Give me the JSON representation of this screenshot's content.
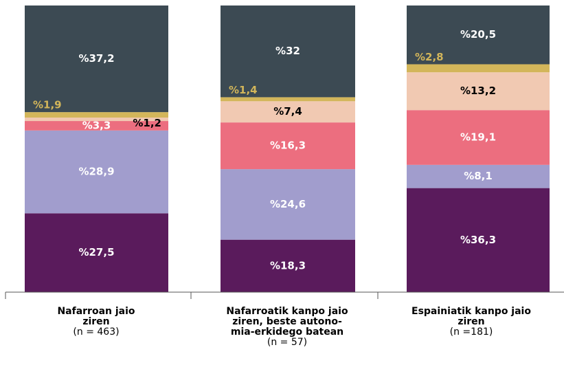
{
  "chart_data": {
    "type": "stacked_bar",
    "categories": [
      "Nafarroan jaio\nziren",
      "Nafarroatik kanpo jaio\nziren, beste autono-\nmia-erkidego batean",
      "Espainiatik kanpo jaio\nziren"
    ],
    "category_notes": [
      "(n = 463)",
      "(n = 57)",
      "(n =181)"
    ],
    "ylim": [
      0,
      100
    ],
    "series": [
      {
        "color": "#5a1b5c",
        "label_color": "#ffffff",
        "values": [
          27.5,
          18.3,
          36.3
        ],
        "value_labels": [
          "%27,5",
          "%18,3",
          "%36,3"
        ]
      },
      {
        "color": "#a19dcd",
        "label_color": "#ffffff",
        "values": [
          28.9,
          24.6,
          8.1
        ],
        "value_labels": [
          "%28,9",
          "%24,6",
          "%8,1"
        ]
      },
      {
        "color": "#ec6e7f",
        "label_color": "#ffffff",
        "values": [
          3.3,
          16.3,
          19.1
        ],
        "value_labels": [
          "%3,3",
          "%16,3",
          "%19,1"
        ]
      },
      {
        "color": "#f1c9b2",
        "label_color": "#000000",
        "values": [
          1.2,
          7.4,
          13.2
        ],
        "value_labels": [
          "%1,2",
          "%7,4",
          "%13,2"
        ]
      },
      {
        "color": "#d3b65a",
        "label_color": "#d3b65a",
        "values": [
          1.9,
          1.4,
          2.8
        ],
        "value_labels": [
          "%1,9",
          "%1,4",
          "%2,8"
        ]
      },
      {
        "color": "#3c4a53",
        "label_color": "#ffffff",
        "values": [
          37.2,
          32,
          20.5
        ],
        "value_labels": [
          "%37,2",
          "%32",
          "%20,5"
        ]
      }
    ]
  }
}
